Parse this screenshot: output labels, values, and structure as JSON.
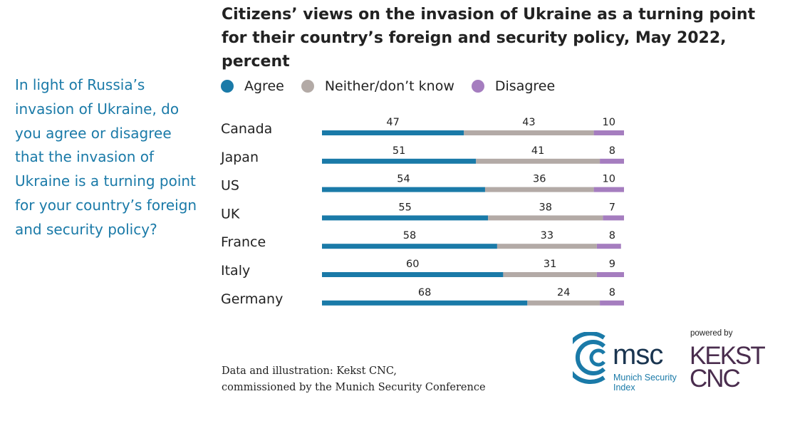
{
  "question": "In light of Russia’s invasion of Ukraine, do you agree or disagree that the invasion of Ukraine is a turning point for your country’s foreign and security policy?",
  "footer": {
    "line1": "Data and illustration: Kekst CNC,",
    "line2": "commissioned by the Munich Security Conference"
  },
  "logos": {
    "msc_word": "msc",
    "msc_sub1": "Munich Security",
    "msc_sub2": "Index",
    "powered_by": "powered by",
    "kekst1": "KEKST",
    "kekst2": "CNC"
  },
  "colors": {
    "agree": "#1a7aa8",
    "neither": "#b3aaa6",
    "disagree": "#a57dbf"
  },
  "chart_data": {
    "type": "bar",
    "orientation": "horizontal",
    "stacked": true,
    "title": "Citizens’ views on the invasion of Ukraine as a turning point for their country’s foreign and security policy, May 2022, percent",
    "categories": [
      "Canada",
      "Japan",
      "US",
      "UK",
      "France",
      "Italy",
      "Germany"
    ],
    "series": [
      {
        "name": "Agree",
        "values": [
          47,
          51,
          54,
          55,
          58,
          60,
          68
        ]
      },
      {
        "name": "Neither/don’t know",
        "values": [
          43,
          41,
          36,
          38,
          33,
          31,
          24
        ]
      },
      {
        "name": "Disagree",
        "values": [
          10,
          8,
          10,
          7,
          8,
          9,
          8
        ]
      }
    ],
    "xlim": [
      0,
      100
    ],
    "legend": "top",
    "grid": false
  }
}
